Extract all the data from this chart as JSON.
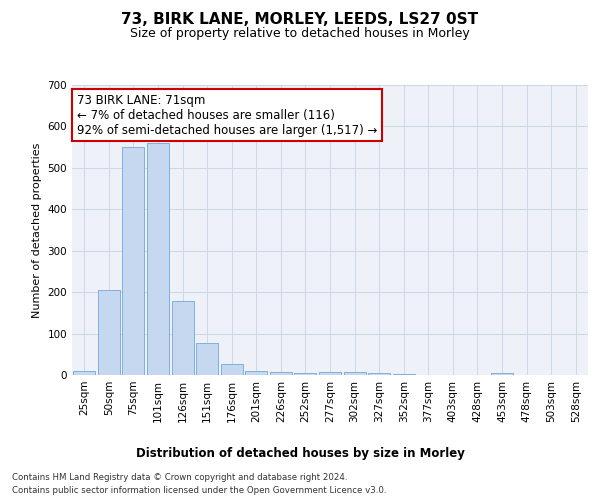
{
  "title1": "73, BIRK LANE, MORLEY, LEEDS, LS27 0ST",
  "title2": "Size of property relative to detached houses in Morley",
  "xlabel": "Distribution of detached houses by size in Morley",
  "ylabel": "Number of detached properties",
  "categories": [
    "25sqm",
    "50sqm",
    "75sqm",
    "101sqm",
    "126sqm",
    "151sqm",
    "176sqm",
    "201sqm",
    "226sqm",
    "252sqm",
    "277sqm",
    "302sqm",
    "327sqm",
    "352sqm",
    "377sqm",
    "403sqm",
    "428sqm",
    "453sqm",
    "478sqm",
    "503sqm",
    "528sqm"
  ],
  "values": [
    10,
    205,
    550,
    560,
    178,
    78,
    27,
    10,
    7,
    5,
    8,
    8,
    5,
    2,
    0,
    0,
    0,
    5,
    0,
    0,
    0
  ],
  "bar_color": "#c5d8f0",
  "bar_edge_color": "#5b9bd5",
  "annotation_box_color": "#ffffff",
  "annotation_border_color": "#cc0000",
  "annotation_text": "73 BIRK LANE: 71sqm\n← 7% of detached houses are smaller (116)\n92% of semi-detached houses are larger (1,517) →",
  "annotation_fontsize": 8.5,
  "grid_color": "#d0d8e8",
  "background_color": "#eef2f8",
  "ylim": [
    0,
    700
  ],
  "yticks": [
    0,
    100,
    200,
    300,
    400,
    500,
    600,
    700
  ],
  "footer1": "Contains HM Land Registry data © Crown copyright and database right 2024.",
  "footer2": "Contains public sector information licensed under the Open Government Licence v3.0.",
  "title1_fontsize": 11,
  "title2_fontsize": 9,
  "xlabel_fontsize": 8.5,
  "ylabel_fontsize": 8,
  "tick_fontsize": 7.5
}
